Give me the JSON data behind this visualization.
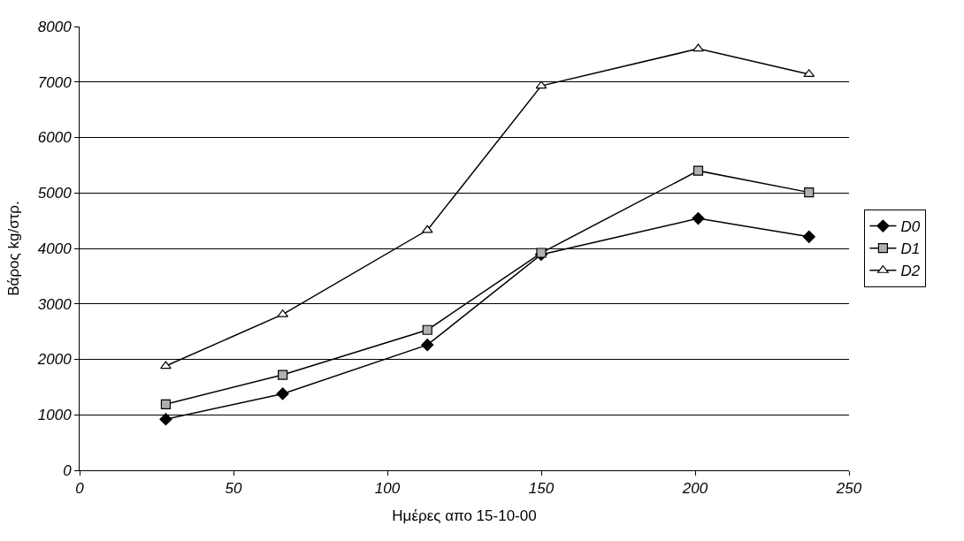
{
  "chart_data": {
    "type": "line",
    "xlabel": "Ημέρες απο 15-10-00",
    "ylabel": "Βάρος kg/στρ.",
    "x": [
      28,
      66,
      113,
      150,
      201,
      237
    ],
    "series": [
      {
        "name": "D0",
        "color": "#000000",
        "marker": "diamond",
        "values": [
          920,
          1380,
          2260,
          3890,
          4540,
          4210
        ]
      },
      {
        "name": "D1",
        "color": "#000000",
        "marker": "square",
        "values": [
          1190,
          1720,
          2530,
          3920,
          5400,
          5010
        ]
      },
      {
        "name": "D2",
        "color": "#000000",
        "marker": "triangle",
        "values": [
          1880,
          2810,
          4330,
          6930,
          7600,
          7140
        ]
      }
    ],
    "xlim": [
      0,
      250
    ],
    "xticks": [
      0,
      50,
      100,
      150,
      200,
      250
    ],
    "ylim": [
      0,
      8000
    ],
    "yticks": [
      0,
      1000,
      2000,
      3000,
      4000,
      5000,
      6000,
      7000,
      8000
    ],
    "grid": "y",
    "legend": "right",
    "line_style": "solid"
  }
}
